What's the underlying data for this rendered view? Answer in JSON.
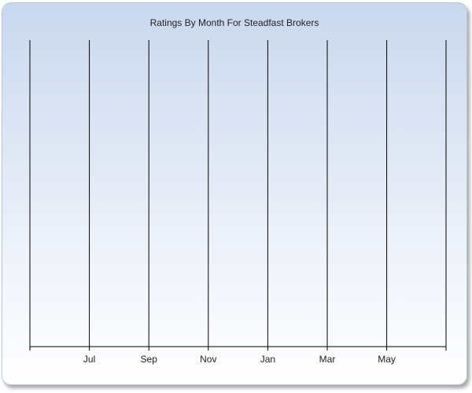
{
  "chart_data": {
    "type": "line",
    "title": "Ratings By Month For Steadfast Brokers",
    "xlabel": "",
    "ylabel": "",
    "categories": [
      "",
      "Jul",
      "Sep",
      "Nov",
      "Jan",
      "Mar",
      "May",
      ""
    ],
    "series": [],
    "grid": "vertical",
    "legend": "none"
  }
}
